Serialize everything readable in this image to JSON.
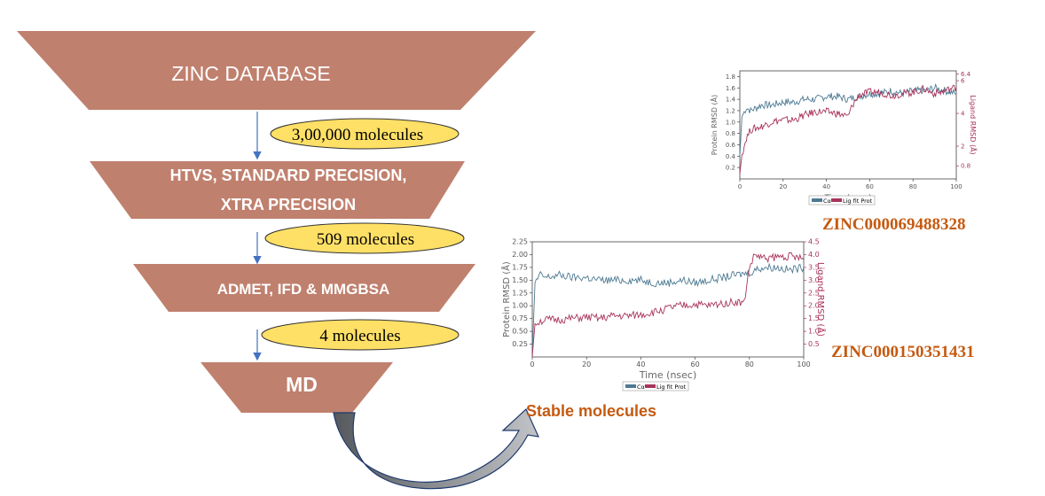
{
  "funnel": {
    "stage1": "ZINC DATABASE",
    "stage2_line1": "HTVS, STANDARD PRECISION,",
    "stage2_line2": "XTRA PRECISION",
    "stage3": "ADMET, IFD & MMGBSA",
    "stage4": "MD"
  },
  "counts": {
    "c1": "3,00,000 molecules",
    "c2": "509 molecules",
    "c3": "4 molecules"
  },
  "result_label": "Stable molecules",
  "colors": {
    "funnel": "#c0806e",
    "oval_fill": "#ffe066",
    "protein_line": "#4d7a93",
    "ligand_line": "#a8345c",
    "accent_text": "#c55a11"
  },
  "chart_data": [
    {
      "type": "line",
      "compound": "ZINC000069488328",
      "xlabel": "Time (nsec)",
      "ylabel": "Protein RMSD (Å)",
      "y2label": "Ligand RMSD (Å)",
      "xlim": [
        0,
        100
      ],
      "ylim": [
        0,
        1.9
      ],
      "y2lim": [
        0,
        6.6
      ],
      "x_ticks": [
        "0",
        "20",
        "40",
        "60",
        "80",
        "100"
      ],
      "y_ticks": [
        "0.2",
        "0.4",
        "0.6",
        "0.8",
        "1.0",
        "1.2",
        "1.4",
        "1.6",
        "1.8"
      ],
      "y2_ticks": [
        "0.8",
        "2",
        "4",
        "6",
        "6.4"
      ],
      "legend": [
        "Cα",
        "Lig fit Prot"
      ],
      "series": [
        {
          "name": "Cα",
          "axis": "left",
          "x": [
            0,
            1,
            3,
            5,
            10,
            15,
            20,
            25,
            30,
            35,
            40,
            45,
            50,
            55,
            60,
            65,
            70,
            75,
            80,
            85,
            90,
            95,
            100
          ],
          "y": [
            0.4,
            1.1,
            1.25,
            1.2,
            1.3,
            1.3,
            1.35,
            1.35,
            1.4,
            1.4,
            1.45,
            1.45,
            1.4,
            1.45,
            1.5,
            1.5,
            1.55,
            1.5,
            1.55,
            1.55,
            1.6,
            1.55,
            1.5
          ]
        },
        {
          "name": "Lig fit Prot",
          "axis": "right",
          "x": [
            0,
            1,
            3,
            5,
            10,
            15,
            20,
            25,
            30,
            35,
            40,
            45,
            50,
            52,
            55,
            60,
            65,
            70,
            75,
            80,
            85,
            90,
            95,
            100
          ],
          "y": [
            0.3,
            1.5,
            2.5,
            3.0,
            3.2,
            3.5,
            3.6,
            3.6,
            3.9,
            4.1,
            4.1,
            4.0,
            3.8,
            4.5,
            5.1,
            5.3,
            5.3,
            5.1,
            5.2,
            5.3,
            5.5,
            5.2,
            5.4,
            5.6
          ]
        }
      ]
    },
    {
      "type": "line",
      "compound": "ZINC000150351431",
      "xlabel": "Time (nsec)",
      "ylabel": "Protein RMSD (Å)",
      "y2label": "Ligand RMSD (Å)",
      "xlim": [
        0,
        100
      ],
      "ylim": [
        0,
        2.25
      ],
      "y2lim": [
        0,
        4.5
      ],
      "x_ticks": [
        "0",
        "20",
        "40",
        "60",
        "80",
        "100"
      ],
      "y_ticks": [
        "0.25",
        "0.50",
        "0.75",
        "1.00",
        "1.25",
        "1.50",
        "1.75",
        "2.00",
        "2.25"
      ],
      "y2_ticks": [
        "0.5",
        "1.0",
        "1.5",
        "2.0",
        "2.5",
        "3.0",
        "3.5",
        "4.0",
        "4.5"
      ],
      "legend": [
        "Cα",
        "Lig fit Prot"
      ],
      "series": [
        {
          "name": "Cα",
          "axis": "left",
          "x": [
            0,
            1,
            3,
            5,
            10,
            15,
            20,
            25,
            30,
            35,
            40,
            45,
            50,
            55,
            60,
            65,
            70,
            75,
            80,
            82,
            85,
            90,
            95,
            100
          ],
          "y": [
            0.0,
            1.45,
            1.6,
            1.55,
            1.6,
            1.55,
            1.55,
            1.5,
            1.5,
            1.5,
            1.5,
            1.45,
            1.45,
            1.5,
            1.45,
            1.5,
            1.55,
            1.6,
            1.65,
            1.7,
            1.75,
            1.75,
            1.7,
            1.75
          ]
        },
        {
          "name": "Lig fit Prot",
          "axis": "right",
          "x": [
            0,
            1,
            3,
            5,
            10,
            15,
            20,
            25,
            30,
            35,
            40,
            45,
            50,
            55,
            60,
            65,
            70,
            75,
            78,
            80,
            82,
            85,
            90,
            95,
            100
          ],
          "y": [
            0.0,
            1.3,
            1.4,
            1.45,
            1.45,
            1.5,
            1.55,
            1.5,
            1.6,
            1.6,
            1.65,
            1.75,
            1.9,
            2.0,
            2.05,
            2.0,
            2.1,
            2.15,
            2.1,
            3.5,
            4.0,
            3.85,
            3.9,
            3.95,
            3.8
          ]
        }
      ]
    }
  ]
}
